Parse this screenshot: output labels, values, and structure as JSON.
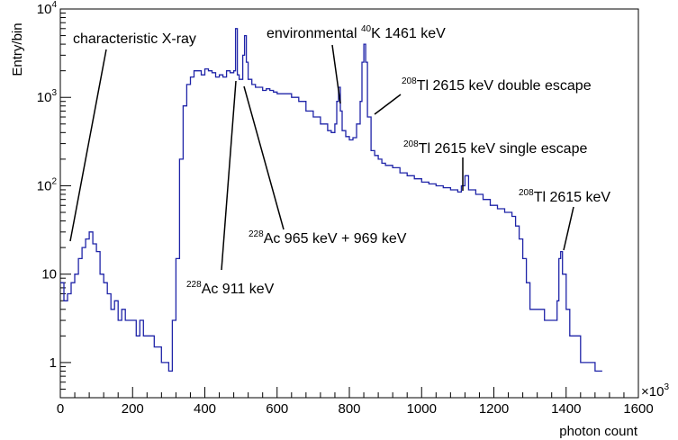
{
  "chart_data": {
    "type": "line",
    "title": "",
    "xlabel": "photon count",
    "ylabel": "Entry/bin",
    "x_multiplier_label": "×10",
    "x_multiplier_exp": "3",
    "xlim": [
      0,
      1600
    ],
    "ylim": [
      0.4,
      10000
    ],
    "yscale": "log",
    "x_ticks": [
      0,
      200,
      400,
      600,
      800,
      1000,
      1200,
      1400,
      1600
    ],
    "x_tick_labels": [
      "0",
      "200",
      "400",
      "600",
      "800",
      "1000",
      "1200",
      "1400",
      "1600"
    ],
    "y_ticks": [
      1,
      10,
      100,
      1000,
      10000
    ],
    "y_tick_labels": [
      {
        "base": "1",
        "exp": ""
      },
      {
        "base": "10",
        "exp": ""
      },
      {
        "base": "10",
        "exp": "2"
      },
      {
        "base": "10",
        "exp": "3"
      },
      {
        "base": "10",
        "exp": "4"
      }
    ],
    "series": [
      {
        "color": "#1f24a8",
        "x": [
          0,
          10,
          20,
          30,
          40,
          50,
          60,
          70,
          80,
          90,
          100,
          110,
          120,
          130,
          140,
          150,
          160,
          170,
          180,
          190,
          200,
          210,
          220,
          230,
          240,
          250,
          260,
          270,
          280,
          290,
          300,
          310,
          320,
          330,
          340,
          350,
          360,
          370,
          380,
          390,
          400,
          410,
          420,
          430,
          440,
          450,
          460,
          470,
          480,
          485,
          490,
          495,
          500,
          505,
          510,
          515,
          520,
          530,
          540,
          550,
          560,
          570,
          580,
          590,
          600,
          620,
          640,
          660,
          680,
          700,
          720,
          740,
          750,
          760,
          765,
          770,
          775,
          780,
          790,
          800,
          810,
          820,
          830,
          835,
          840,
          845,
          850,
          860,
          870,
          880,
          890,
          900,
          920,
          940,
          960,
          980,
          1000,
          1020,
          1040,
          1060,
          1080,
          1100,
          1110,
          1120,
          1130,
          1150,
          1170,
          1190,
          1210,
          1230,
          1250,
          1260,
          1270,
          1280,
          1290,
          1300,
          1320,
          1340,
          1360,
          1370,
          1375,
          1380,
          1385,
          1390,
          1400,
          1410,
          1420,
          1440,
          1460,
          1480,
          1500
        ],
        "y": [
          8,
          5,
          6,
          8,
          10,
          15,
          20,
          25,
          30,
          22,
          18,
          10,
          8,
          6,
          4,
          5,
          3,
          4,
          3,
          3,
          3,
          2,
          3,
          2,
          2,
          2,
          1.5,
          1.5,
          1,
          1,
          0.8,
          3,
          15,
          200,
          800,
          1400,
          1700,
          2000,
          2000,
          1800,
          2100,
          2000,
          1900,
          1700,
          1800,
          1700,
          2000,
          1900,
          2000,
          6000,
          1800,
          1600,
          1600,
          3000,
          5000,
          2500,
          1600,
          1400,
          1300,
          1300,
          1200,
          1250,
          1200,
          1150,
          1100,
          1100,
          1000,
          900,
          700,
          600,
          500,
          420,
          400,
          500,
          900,
          1300,
          700,
          420,
          360,
          330,
          350,
          500,
          900,
          2500,
          4000,
          2500,
          600,
          250,
          220,
          200,
          180,
          170,
          160,
          140,
          130,
          120,
          110,
          105,
          100,
          95,
          90,
          85,
          100,
          130,
          90,
          80,
          70,
          60,
          55,
          50,
          45,
          35,
          25,
          15,
          8,
          4,
          4,
          3,
          3,
          3,
          5,
          15,
          18,
          10,
          4,
          2,
          2,
          1,
          1,
          0.8,
          0.8
        ]
      }
    ],
    "annotations": [
      {
        "sup": "",
        "text": "characteristic X-ray"
      },
      {
        "sup": "",
        "text": "environmental "
      },
      {
        "sup": "40",
        "text": "K 1461 keV"
      },
      {
        "sup": "208",
        "text": "Tl 2615 keV double escape"
      },
      {
        "sup": "208",
        "text": "Tl 2615 keV single escape"
      },
      {
        "sup": "208",
        "text": "Tl 2615 keV"
      },
      {
        "sup": "228",
        "text": "Ac 965 keV + 969 keV"
      },
      {
        "sup": "228",
        "text": "Ac 911 keV"
      }
    ],
    "grid": false,
    "legend": "none"
  }
}
